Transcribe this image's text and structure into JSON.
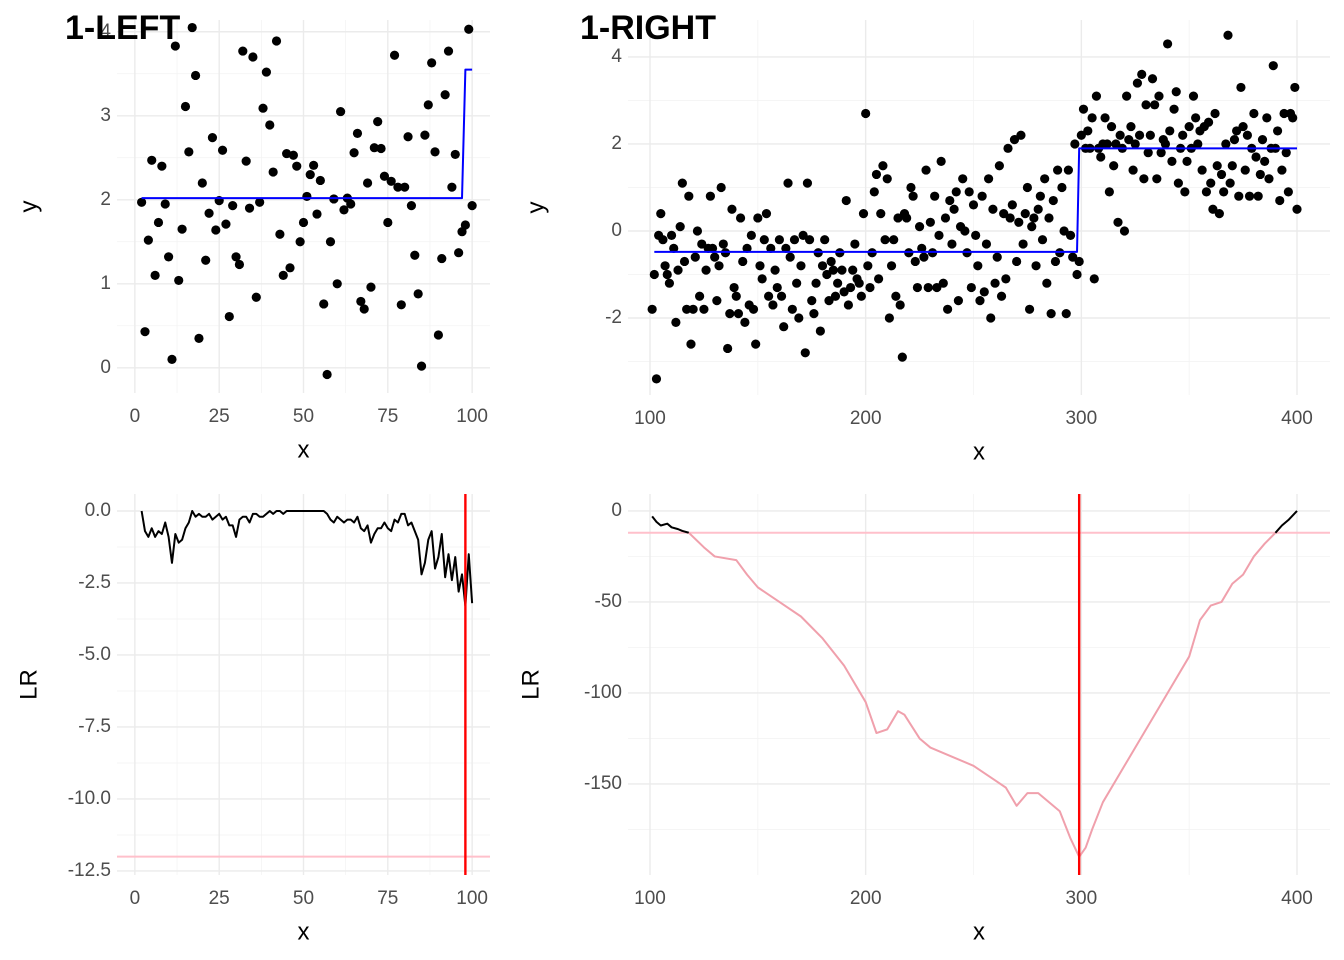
{
  "chart_data": [
    {
      "type": "scatter",
      "title": "1-LEFT",
      "x_label": "x",
      "y_label": "y",
      "color": "#000000",
      "grid": true,
      "xlim": [
        -5.3,
        105.3
      ],
      "ylim": [
        -0.3,
        4.14
      ],
      "xticks": [
        0,
        25,
        50,
        75,
        100
      ],
      "yticks": [
        0,
        1,
        2,
        3,
        4
      ],
      "x": [
        2,
        3,
        4,
        5,
        6,
        7,
        8,
        9,
        10,
        11,
        12,
        13,
        14,
        15,
        16,
        17,
        18,
        19,
        20,
        21,
        22,
        23,
        24,
        25,
        26,
        27,
        28,
        29,
        30,
        31,
        32,
        33,
        34,
        35,
        36,
        37,
        38,
        39,
        40,
        41,
        42,
        43,
        44,
        45,
        46,
        47,
        48,
        49,
        50,
        51,
        52,
        53,
        54,
        55,
        56,
        57,
        58,
        59,
        60,
        61,
        62,
        63,
        64,
        65,
        66,
        67,
        68,
        69,
        70,
        71,
        72,
        73,
        74,
        75,
        76,
        77,
        78,
        79,
        80,
        81,
        82,
        83,
        84,
        85,
        86,
        87,
        88,
        89,
        90,
        91,
        92,
        93,
        94,
        95,
        96,
        97,
        98,
        99,
        100
      ],
      "values": [
        1.97,
        0.43,
        1.52,
        2.47,
        1.1,
        1.73,
        2.4,
        1.95,
        1.32,
        0.1,
        3.83,
        1.04,
        1.65,
        3.11,
        2.57,
        4.05,
        3.48,
        0.35,
        2.2,
        1.28,
        1.84,
        2.74,
        1.64,
        1.99,
        2.59,
        1.71,
        0.61,
        1.93,
        1.32,
        1.23,
        3.77,
        2.46,
        1.9,
        3.7,
        0.84,
        1.97,
        3.09,
        3.52,
        2.89,
        2.33,
        3.89,
        1.59,
        1.1,
        2.55,
        1.19,
        2.53,
        2.4,
        1.5,
        1.73,
        2.04,
        2.3,
        2.41,
        1.83,
        2.23,
        0.76,
        -0.08,
        1.5,
        2.01,
        1.0,
        3.05,
        1.88,
        2.02,
        1.95,
        2.56,
        2.79,
        0.79,
        0.7,
        2.2,
        0.96,
        2.62,
        2.93,
        2.61,
        2.28,
        1.73,
        2.22,
        3.72,
        2.15,
        0.75,
        2.15,
        2.75,
        1.93,
        1.34,
        0.88,
        0.02,
        2.77,
        3.13,
        3.63,
        2.57,
        0.39,
        1.3,
        3.25,
        3.77,
        2.15,
        2.54,
        1.37,
        1.62,
        1.7,
        4.03,
        1.93
      ],
      "lines": [
        {
          "color": "#0000ff",
          "x": [
            2,
            97,
            98,
            100
          ],
          "values": [
            2.02,
            2.02,
            3.55,
            3.55
          ]
        }
      ]
    },
    {
      "type": "scatter",
      "title": "1-RIGHT",
      "x_label": "x",
      "y_label": "y",
      "color": "#000000",
      "grid": true,
      "xlim": [
        89.8,
        415.3
      ],
      "ylim": [
        -3.77,
        4.85
      ],
      "xticks": [
        100,
        200,
        300,
        400
      ],
      "yticks": [
        -2,
        0,
        2,
        4
      ],
      "x": [
        101,
        102,
        103,
        104,
        105,
        106,
        107,
        108,
        109,
        110,
        111,
        112,
        113,
        114,
        115,
        116,
        117,
        118,
        119,
        120,
        121,
        122,
        123,
        124,
        125,
        126,
        127,
        128,
        129,
        130,
        131,
        132,
        133,
        134,
        135,
        136,
        137,
        138,
        139,
        140,
        141,
        142,
        143,
        144,
        145,
        146,
        147,
        148,
        149,
        150,
        151,
        152,
        153,
        154,
        155,
        156,
        157,
        158,
        159,
        160,
        161,
        162,
        163,
        164,
        165,
        166,
        167,
        168,
        169,
        170,
        171,
        172,
        173,
        174,
        175,
        176,
        177,
        178,
        179,
        180,
        181,
        182,
        183,
        184,
        185,
        186,
        187,
        188,
        189,
        190,
        191,
        192,
        193,
        194,
        195,
        196,
        197,
        198,
        199,
        200,
        201,
        202,
        203,
        204,
        205,
        206,
        207,
        208,
        209,
        210,
        211,
        212,
        213,
        214,
        215,
        216,
        217,
        218,
        219,
        220,
        221,
        222,
        223,
        224,
        225,
        226,
        227,
        228,
        229,
        230,
        231,
        232,
        233,
        234,
        235,
        236,
        237,
        238,
        239,
        240,
        241,
        242,
        243,
        244,
        245,
        246,
        247,
        248,
        249,
        250,
        251,
        252,
        253,
        254,
        255,
        256,
        257,
        258,
        259,
        260,
        261,
        262,
        263,
        264,
        265,
        266,
        267,
        268,
        269,
        270,
        271,
        272,
        273,
        274,
        275,
        276,
        277,
        278,
        279,
        280,
        281,
        282,
        283,
        284,
        285,
        286,
        287,
        288,
        289,
        290,
        291,
        292,
        293,
        294,
        295,
        296,
        297,
        298,
        299,
        300,
        301,
        302,
        303,
        304,
        305,
        306,
        307,
        308,
        309,
        310,
        311,
        312,
        313,
        314,
        315,
        316,
        317,
        318,
        319,
        320,
        321,
        322,
        323,
        324,
        325,
        326,
        327,
        328,
        329,
        330,
        331,
        332,
        333,
        334,
        335,
        336,
        337,
        338,
        339,
        340,
        341,
        342,
        343,
        344,
        345,
        346,
        347,
        348,
        349,
        350,
        351,
        352,
        353,
        354,
        355,
        356,
        357,
        358,
        359,
        360,
        361,
        362,
        363,
        364,
        365,
        366,
        367,
        368,
        369,
        370,
        371,
        372,
        373,
        374,
        375,
        376,
        377,
        378,
        379,
        380,
        381,
        382,
        383,
        384,
        385,
        386,
        387,
        388,
        389,
        390,
        391,
        392,
        393,
        394,
        395,
        396,
        397,
        398,
        399,
        400
      ],
      "values": [
        -1.8,
        -1.0,
        -3.4,
        -0.1,
        0.4,
        -0.2,
        -0.8,
        -1.0,
        -1.2,
        -0.1,
        -0.4,
        -2.1,
        -0.9,
        0.1,
        1.1,
        -0.7,
        -1.8,
        0.8,
        -2.6,
        -1.8,
        -0.6,
        0.0,
        -1.5,
        -0.3,
        -1.8,
        -0.9,
        -0.4,
        0.8,
        -0.4,
        -0.6,
        -1.6,
        -0.8,
        1.0,
        -0.3,
        -0.5,
        -2.7,
        -1.9,
        0.5,
        -1.3,
        -1.5,
        -1.9,
        0.3,
        -0.7,
        -2.1,
        -0.4,
        -1.7,
        -0.1,
        -1.8,
        -2.6,
        0.3,
        -0.8,
        -1.1,
        -0.2,
        0.4,
        -1.5,
        -0.4,
        -1.7,
        -0.9,
        -1.3,
        -0.2,
        -1.5,
        -2.2,
        -0.4,
        1.1,
        -0.6,
        -1.8,
        -0.2,
        -1.2,
        -2.0,
        -0.8,
        -0.1,
        -2.8,
        1.1,
        -0.2,
        -1.6,
        -1.9,
        -1.2,
        -0.5,
        -2.3,
        -0.8,
        -0.2,
        -1.0,
        -1.6,
        -0.7,
        -0.9,
        -1.5,
        -1.2,
        -0.5,
        -0.9,
        -1.4,
        0.7,
        -1.7,
        -1.3,
        -0.9,
        -0.3,
        -1.1,
        -1.2,
        -1.5,
        0.4,
        2.7,
        -0.8,
        -1.3,
        -0.5,
        0.9,
        1.3,
        -1.1,
        0.4,
        1.5,
        -0.2,
        1.2,
        -2.0,
        -0.8,
        -0.2,
        -1.5,
        0.3,
        -1.7,
        -2.9,
        0.4,
        0.3,
        -0.5,
        1.0,
        0.8,
        -0.7,
        -1.3,
        0.1,
        -0.4,
        -0.6,
        1.4,
        -1.3,
        0.2,
        -0.5,
        0.8,
        -1.3,
        -0.1,
        1.6,
        -1.2,
        0.3,
        -1.8,
        0.7,
        -0.3,
        0.5,
        0.9,
        -1.6,
        0.1,
        1.2,
        0.0,
        -0.5,
        0.9,
        -1.3,
        0.6,
        -0.1,
        -0.8,
        -1.6,
        0.8,
        -1.4,
        -0.3,
        1.2,
        -2.0,
        0.5,
        -1.2,
        -0.6,
        1.5,
        -1.5,
        0.4,
        -1.1,
        1.9,
        0.3,
        0.6,
        2.1,
        -0.7,
        0.2,
        2.2,
        -0.3,
        0.4,
        1.0,
        -1.8,
        0.1,
        0.3,
        -0.8,
        0.5,
        0.8,
        -0.2,
        1.2,
        -1.2,
        0.3,
        -1.9,
        0.7,
        -0.7,
        1.4,
        -0.5,
        1.0,
        0.0,
        -1.9,
        1.4,
        -0.1,
        -0.6,
        2.0,
        -1.0,
        -0.7,
        2.2,
        2.8,
        1.9,
        2.3,
        1.9,
        2.6,
        -1.1,
        3.1,
        1.9,
        1.7,
        2.0,
        2.6,
        2.0,
        0.9,
        2.4,
        1.5,
        2.0,
        0.2,
        2.2,
        1.9,
        0.0,
        3.1,
        2.1,
        2.4,
        1.4,
        2.0,
        3.4,
        2.2,
        3.6,
        1.2,
        2.9,
        1.8,
        2.2,
        3.5,
        2.9,
        1.2,
        3.1,
        1.8,
        2.1,
        2.0,
        4.3,
        2.3,
        1.6,
        2.8,
        3.2,
        1.1,
        1.9,
        2.2,
        0.9,
        1.6,
        2.4,
        1.9,
        3.1,
        2.6,
        2.0,
        2.3,
        1.4,
        2.4,
        0.9,
        2.5,
        1.1,
        0.5,
        2.7,
        1.5,
        0.4,
        1.3,
        0.9,
        2.0,
        4.5,
        1.1,
        1.5,
        2.1,
        2.3,
        0.8,
        3.3,
        2.4,
        1.4,
        2.2,
        0.8,
        1.9,
        2.7,
        1.7,
        0.8,
        1.3,
        2.1,
        1.6,
        2.6,
        1.2,
        1.9,
        3.8,
        1.9,
        2.3,
        0.7,
        1.4,
        2.7,
        1.8,
        0.9,
        2.7,
        2.6,
        3.3,
        0.5
      ],
      "lines": [
        {
          "color": "#0000ff",
          "x": [
            102,
            298,
            299,
            400
          ],
          "values": [
            -0.48,
            -0.48,
            1.9,
            1.9
          ]
        }
      ]
    },
    {
      "type": "line",
      "x_label": "x",
      "y_label": "LR",
      "grid": true,
      "xlim": [
        -5.3,
        105.3
      ],
      "ylim": [
        -12.64,
        0.59
      ],
      "xticks": [
        0,
        25,
        50,
        75,
        100
      ],
      "yticks": [
        {
          "value": 0,
          "label": "0.0"
        },
        -2.5,
        {
          "value": -5,
          "label": "-5.0"
        },
        -7.5,
        {
          "value": -10,
          "label": "-10.0"
        },
        -12.5
      ],
      "series": [
        {
          "color": "#000000",
          "x": [
            2,
            3,
            4,
            5,
            6,
            7,
            8,
            9,
            10,
            11,
            12,
            13,
            14,
            15,
            16,
            17,
            18,
            19,
            20,
            21,
            22,
            23,
            24,
            25,
            26,
            27,
            28,
            29,
            30,
            31,
            32,
            33,
            34,
            35,
            36,
            37,
            38,
            39,
            40,
            41,
            42,
            43,
            44,
            45,
            46,
            47,
            48,
            49,
            50,
            51,
            52,
            53,
            54,
            55,
            56,
            57,
            58,
            59,
            60,
            61,
            62,
            63,
            64,
            65,
            66,
            67,
            68,
            69,
            70,
            71,
            72,
            73,
            74,
            75,
            76,
            77,
            78,
            79,
            80,
            81,
            82,
            83,
            84,
            85,
            86,
            87,
            88,
            89,
            90,
            91,
            92,
            93,
            94,
            95,
            96,
            97,
            98,
            99,
            100
          ],
          "values": [
            0.0,
            -0.7,
            -0.9,
            -0.6,
            -0.9,
            -0.7,
            -0.8,
            -0.4,
            -0.9,
            -1.8,
            -0.8,
            -1.1,
            -1.0,
            -0.6,
            -0.4,
            0.0,
            -0.2,
            -0.1,
            -0.2,
            -0.2,
            -0.1,
            -0.3,
            -0.2,
            -0.1,
            -0.3,
            -0.2,
            -0.5,
            -0.5,
            -0.9,
            -0.3,
            -0.2,
            -0.2,
            -0.4,
            -0.1,
            -0.1,
            -0.2,
            -0.2,
            -0.1,
            0.0,
            -0.1,
            0.0,
            0.0,
            -0.1,
            0.0,
            0.0,
            0.0,
            0.0,
            0.0,
            0.0,
            0.0,
            0.0,
            0.0,
            0.0,
            0.0,
            0.0,
            -0.1,
            -0.3,
            -0.4,
            -0.2,
            -0.3,
            -0.4,
            -0.3,
            -0.3,
            -0.4,
            -0.2,
            -0.6,
            -0.7,
            -0.5,
            -1.1,
            -0.8,
            -0.6,
            -0.6,
            -0.4,
            -0.6,
            -0.7,
            -0.3,
            -0.4,
            -0.1,
            -0.1,
            -0.5,
            -0.4,
            -0.7,
            -1.0,
            -2.2,
            -1.8,
            -1.0,
            -0.7,
            -2.0,
            -1.6,
            -0.8,
            -2.3,
            -1.5,
            -2.4,
            -1.6,
            -2.8,
            -2.2,
            -3.3,
            -1.5,
            -3.2
          ]
        }
      ],
      "hlines": [
        {
          "value": -12,
          "color": "#ffc0cb"
        }
      ],
      "vlines": [
        {
          "value": 98,
          "color": "#ff0000"
        }
      ]
    },
    {
      "type": "line",
      "x_label": "x",
      "y_label": "LR",
      "grid": true,
      "xlim": [
        89.8,
        415.3
      ],
      "ylim": [
        -200,
        9.3
      ],
      "xticks": [
        100,
        200,
        300,
        400
      ],
      "yticks": [
        0,
        -50,
        -100,
        -150
      ],
      "series": [
        {
          "color": "#000000",
          "x": [
            101,
            103,
            105,
            108,
            110,
            113,
            115,
            118
          ],
          "values": [
            -3,
            -6,
            -8,
            -7,
            -9,
            -10,
            -11,
            -12
          ]
        },
        {
          "color": "#f0a0ac",
          "x": [
            118,
            125,
            130,
            140,
            145,
            150,
            160,
            170,
            180,
            190,
            200,
            205,
            210,
            215,
            218,
            225,
            230,
            240,
            250,
            260,
            265,
            270,
            275,
            280,
            290,
            295,
            299,
            302,
            305,
            310,
            320,
            330,
            340,
            350,
            355,
            360,
            365,
            370,
            375,
            380,
            385,
            390
          ],
          "values": [
            -12,
            -20,
            -25,
            -27,
            -35,
            -42,
            -50,
            -58,
            -70,
            -85,
            -105,
            -122,
            -120,
            -110,
            -112,
            -125,
            -130,
            -135,
            -140,
            -148,
            -152,
            -162,
            -155,
            -155,
            -165,
            -180,
            -190,
            -185,
            -175,
            -160,
            -140,
            -120,
            -100,
            -80,
            -60,
            -52,
            -50,
            -40,
            -35,
            -25,
            -18,
            -12
          ]
        },
        {
          "color": "#000000",
          "x": [
            390,
            393,
            396,
            400
          ],
          "values": [
            -12,
            -8,
            -5,
            0
          ]
        }
      ],
      "hlines": [
        {
          "value": -12,
          "color": "#ffc0cb"
        }
      ],
      "vlines": [
        {
          "value": 299,
          "color": "#ff0000"
        }
      ]
    }
  ]
}
